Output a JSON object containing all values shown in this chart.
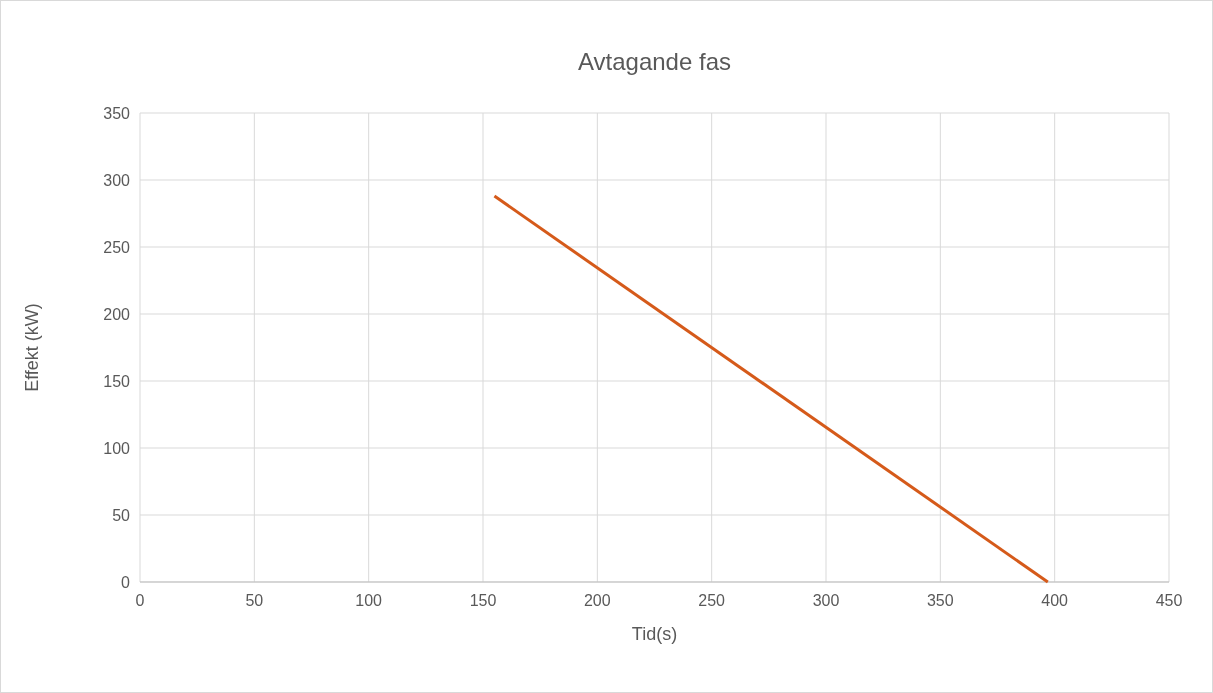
{
  "chart_data": {
    "type": "line",
    "title": "Avtagande fas",
    "xlabel": "Tid(s)",
    "ylabel": "Effekt (kW)",
    "series": [
      {
        "color": "#d55a1a",
        "x": [
          155,
          397
        ],
        "values": [
          288,
          0
        ]
      }
    ],
    "xlim": [
      0,
      450
    ],
    "xticks": [
      0,
      50,
      100,
      150,
      200,
      250,
      300,
      350,
      400,
      450
    ],
    "ylim": [
      0,
      350
    ],
    "yticks": [
      0,
      50,
      100,
      150,
      200,
      250,
      300,
      350
    ],
    "grid": true,
    "marker": "none",
    "line_style": "solid"
  }
}
